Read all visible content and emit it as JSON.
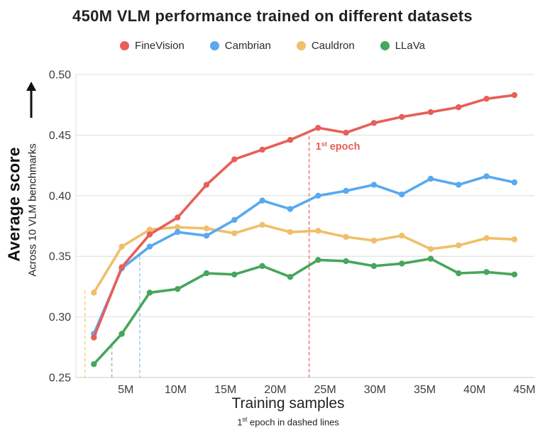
{
  "title": "450M VLM performance trained on different datasets",
  "chart_data": {
    "type": "line",
    "title": "450M VLM performance trained on different datasets",
    "xlabel": "Training samples",
    "xlabel_note": {
      "prefix": "1",
      "sup": "st",
      "rest": " epoch in dashed lines"
    },
    "ylabel": "Average score",
    "ylabel_sub": "Across 10 VLM benchmarks",
    "legend_position": "top",
    "grid": "horizontal",
    "xlim": [
      0,
      46
    ],
    "ylim": [
      0.25,
      0.5
    ],
    "x_unit": "millions of samples",
    "x_ticks": {
      "values": [
        5,
        10,
        15,
        20,
        25,
        30,
        35,
        40,
        45
      ],
      "labels": [
        "5M",
        "10M",
        "15M",
        "20M",
        "25M",
        "30M",
        "35M",
        "40M",
        "45M"
      ]
    },
    "y_ticks": {
      "values": [
        0.25,
        0.3,
        0.35,
        0.4,
        0.45,
        0.5
      ],
      "labels": [
        "0.25",
        "0.30",
        "0.35",
        "0.40",
        "0.45",
        "0.50"
      ]
    },
    "x": [
      1.8,
      4.6,
      7.4,
      10.2,
      13.1,
      15.9,
      18.7,
      21.5,
      24.3,
      27.1,
      29.9,
      32.7,
      35.6,
      38.4,
      41.2,
      44.0
    ],
    "series": [
      {
        "name": "FineVision",
        "color": "#e75f58",
        "values": [
          0.283,
          0.341,
          0.368,
          0.382,
          0.409,
          0.43,
          0.438,
          0.446,
          0.456,
          0.452,
          0.46,
          0.465,
          0.469,
          0.473,
          0.48,
          0.483
        ]
      },
      {
        "name": "Cambrian",
        "color": "#58a9ee",
        "values": [
          0.286,
          0.34,
          0.358,
          0.37,
          0.367,
          0.38,
          0.396,
          0.389,
          0.4,
          0.404,
          0.409,
          0.401,
          0.414,
          0.409,
          0.416,
          0.411
        ]
      },
      {
        "name": "Cauldron",
        "color": "#f0bf6a",
        "values": [
          0.32,
          0.358,
          0.372,
          0.374,
          0.373,
          0.369,
          0.376,
          0.37,
          0.371,
          0.366,
          0.363,
          0.367,
          0.356,
          0.359,
          0.365,
          0.364
        ]
      },
      {
        "name": "LLaVa",
        "color": "#46a65c",
        "values": [
          0.261,
          0.286,
          0.32,
          0.323,
          0.336,
          0.335,
          0.342,
          0.333,
          0.347,
          0.346,
          0.342,
          0.344,
          0.348,
          0.336,
          0.337,
          0.335
        ]
      }
    ],
    "draw_order": [
      2,
      3,
      1,
      0
    ],
    "epoch_lines": [
      {
        "series": "Cauldron",
        "x": 0.9,
        "y_top": 0.322,
        "color": "#f3d491"
      },
      {
        "series": "LLaVa",
        "x": 3.6,
        "y_top": 0.276,
        "color": "#93cf9f"
      },
      {
        "series": "Cambrian",
        "x": 6.4,
        "y_top": 0.35,
        "color": "#a4d0f3"
      },
      {
        "series": "FineVision",
        "x": 23.4,
        "y_top": 0.449,
        "color": "#ee837c"
      }
    ],
    "annotation": {
      "prefix": "1",
      "sup": "st",
      "rest": " epoch",
      "color": "#e75f58",
      "x": 23.4,
      "y": 0.438
    }
  }
}
